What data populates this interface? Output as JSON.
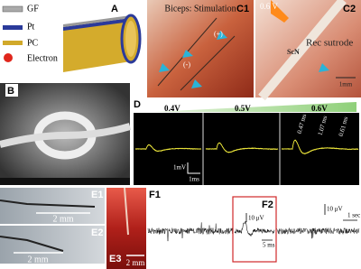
{
  "panel_a": {
    "label": "A",
    "legend": [
      "GF",
      "Pt",
      "PC",
      "Electron"
    ]
  },
  "panel_b": {
    "label": "B"
  },
  "panel_c1": {
    "label": "C1",
    "caption": "Biceps: Stimulation",
    "plus": "(+)",
    "minus": "(-)"
  },
  "panel_c2": {
    "label": "C2",
    "voltage": "0.6 V",
    "annotation": "Rec sutrode",
    "nerve": "ScN",
    "scale": "1mm"
  },
  "panel_d": {
    "label": "D",
    "voltages": [
      "0.4V",
      "0.5V",
      "0.6V"
    ],
    "latencies": [
      "0.47 ms",
      "1.07 ms",
      "0.61 ms"
    ],
    "scale_y": "1mV",
    "scale_x": "1ms"
  },
  "panel_e": {
    "labels": [
      "E1",
      "E2",
      "E3"
    ],
    "scales": [
      "2 mm",
      "2 mm",
      "2 mm"
    ]
  },
  "panel_f": {
    "labels": [
      "F1",
      "F2"
    ],
    "inset_scale_y": "10 μV",
    "inset_scale_x": "5 ms",
    "scale_y": "10 μV",
    "scale_x": "1 sec"
  }
}
